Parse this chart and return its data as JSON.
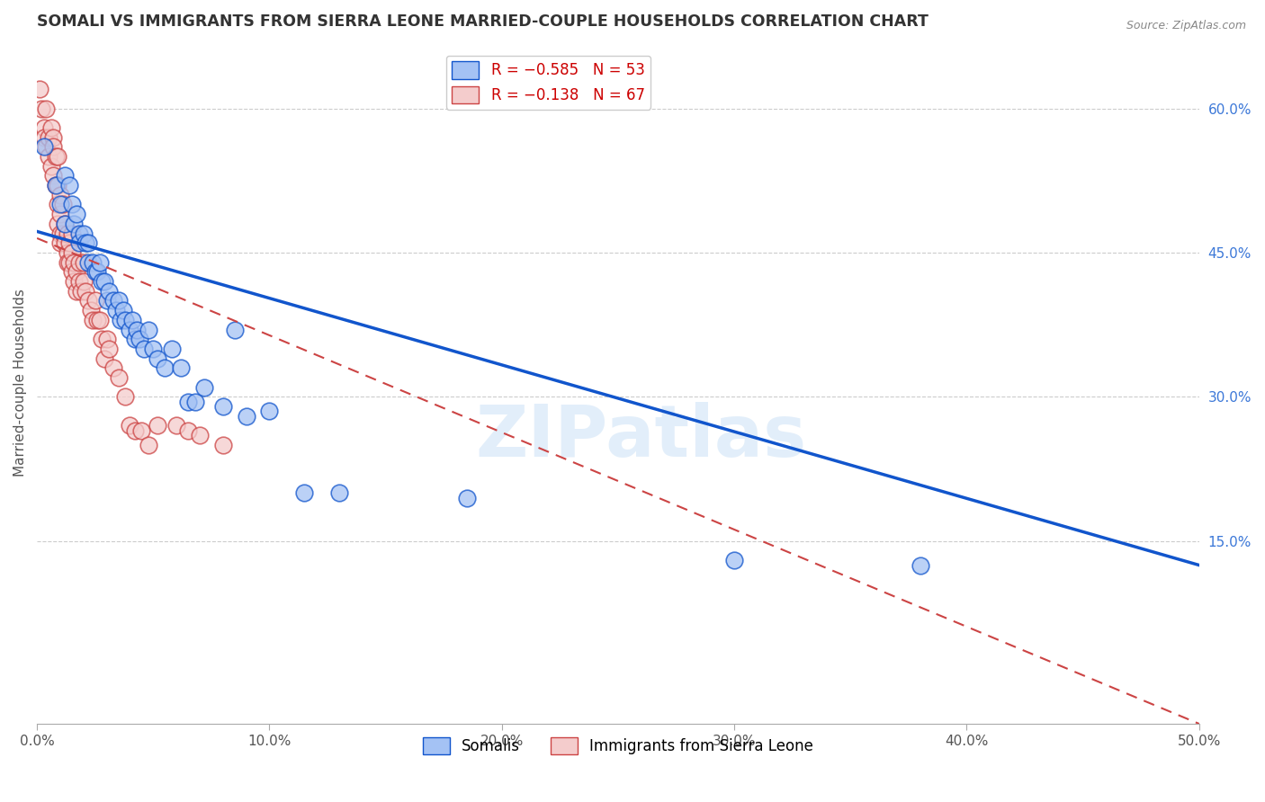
{
  "title": "SOMALI VS IMMIGRANTS FROM SIERRA LEONE MARRIED-COUPLE HOUSEHOLDS CORRELATION CHART",
  "source": "Source: ZipAtlas.com",
  "ylabel": "Married-couple Households",
  "ylabel_right_ticks": [
    "60.0%",
    "45.0%",
    "30.0%",
    "15.0%"
  ],
  "ylabel_right_vals": [
    0.6,
    0.45,
    0.3,
    0.15
  ],
  "xlim": [
    0.0,
    0.5
  ],
  "ylim": [
    -0.04,
    0.67
  ],
  "legend_blue_r": "R = −0.585",
  "legend_blue_n": "N = 53",
  "legend_pink_r": "R = −0.138",
  "legend_pink_n": "N = 67",
  "blue_color": "#a4c2f4",
  "pink_color": "#f4cccc",
  "blue_line_color": "#1155cc",
  "pink_line_color": "#cc4444",
  "watermark": "ZIPatlas",
  "blue_line": [
    0.0,
    0.472,
    0.5,
    0.125
  ],
  "pink_line": [
    0.0,
    0.465,
    0.5,
    -0.04
  ],
  "somalis_x": [
    0.003,
    0.008,
    0.01,
    0.012,
    0.012,
    0.014,
    0.015,
    0.016,
    0.017,
    0.018,
    0.018,
    0.02,
    0.021,
    0.022,
    0.022,
    0.024,
    0.025,
    0.026,
    0.027,
    0.028,
    0.029,
    0.03,
    0.031,
    0.033,
    0.034,
    0.035,
    0.036,
    0.037,
    0.038,
    0.04,
    0.041,
    0.042,
    0.043,
    0.044,
    0.046,
    0.048,
    0.05,
    0.052,
    0.055,
    0.058,
    0.062,
    0.065,
    0.068,
    0.072,
    0.08,
    0.085,
    0.09,
    0.1,
    0.115,
    0.13,
    0.185,
    0.3,
    0.38
  ],
  "somalis_y": [
    0.56,
    0.52,
    0.5,
    0.53,
    0.48,
    0.52,
    0.5,
    0.48,
    0.49,
    0.47,
    0.46,
    0.47,
    0.46,
    0.44,
    0.46,
    0.44,
    0.43,
    0.43,
    0.44,
    0.42,
    0.42,
    0.4,
    0.41,
    0.4,
    0.39,
    0.4,
    0.38,
    0.39,
    0.38,
    0.37,
    0.38,
    0.36,
    0.37,
    0.36,
    0.35,
    0.37,
    0.35,
    0.34,
    0.33,
    0.35,
    0.33,
    0.295,
    0.295,
    0.31,
    0.29,
    0.37,
    0.28,
    0.285,
    0.2,
    0.2,
    0.195,
    0.13,
    0.125
  ],
  "sierra_leone_x": [
    0.001,
    0.002,
    0.003,
    0.003,
    0.004,
    0.004,
    0.005,
    0.005,
    0.006,
    0.006,
    0.007,
    0.007,
    0.007,
    0.008,
    0.008,
    0.009,
    0.009,
    0.009,
    0.009,
    0.01,
    0.01,
    0.01,
    0.01,
    0.011,
    0.011,
    0.012,
    0.012,
    0.013,
    0.013,
    0.013,
    0.014,
    0.014,
    0.015,
    0.015,
    0.015,
    0.016,
    0.016,
    0.017,
    0.017,
    0.018,
    0.018,
    0.019,
    0.02,
    0.02,
    0.021,
    0.022,
    0.023,
    0.024,
    0.025,
    0.026,
    0.027,
    0.028,
    0.029,
    0.03,
    0.031,
    0.033,
    0.035,
    0.038,
    0.04,
    0.042,
    0.045,
    0.048,
    0.052,
    0.06,
    0.065,
    0.07,
    0.08
  ],
  "sierra_leone_y": [
    0.62,
    0.6,
    0.58,
    0.57,
    0.6,
    0.56,
    0.57,
    0.55,
    0.58,
    0.54,
    0.57,
    0.56,
    0.53,
    0.55,
    0.52,
    0.55,
    0.52,
    0.5,
    0.48,
    0.51,
    0.49,
    0.47,
    0.46,
    0.5,
    0.47,
    0.48,
    0.46,
    0.47,
    0.45,
    0.44,
    0.46,
    0.44,
    0.47,
    0.45,
    0.43,
    0.44,
    0.42,
    0.43,
    0.41,
    0.44,
    0.42,
    0.41,
    0.44,
    0.42,
    0.41,
    0.4,
    0.39,
    0.38,
    0.4,
    0.38,
    0.38,
    0.36,
    0.34,
    0.36,
    0.35,
    0.33,
    0.32,
    0.3,
    0.27,
    0.265,
    0.265,
    0.25,
    0.27,
    0.27,
    0.265,
    0.26,
    0.25
  ]
}
